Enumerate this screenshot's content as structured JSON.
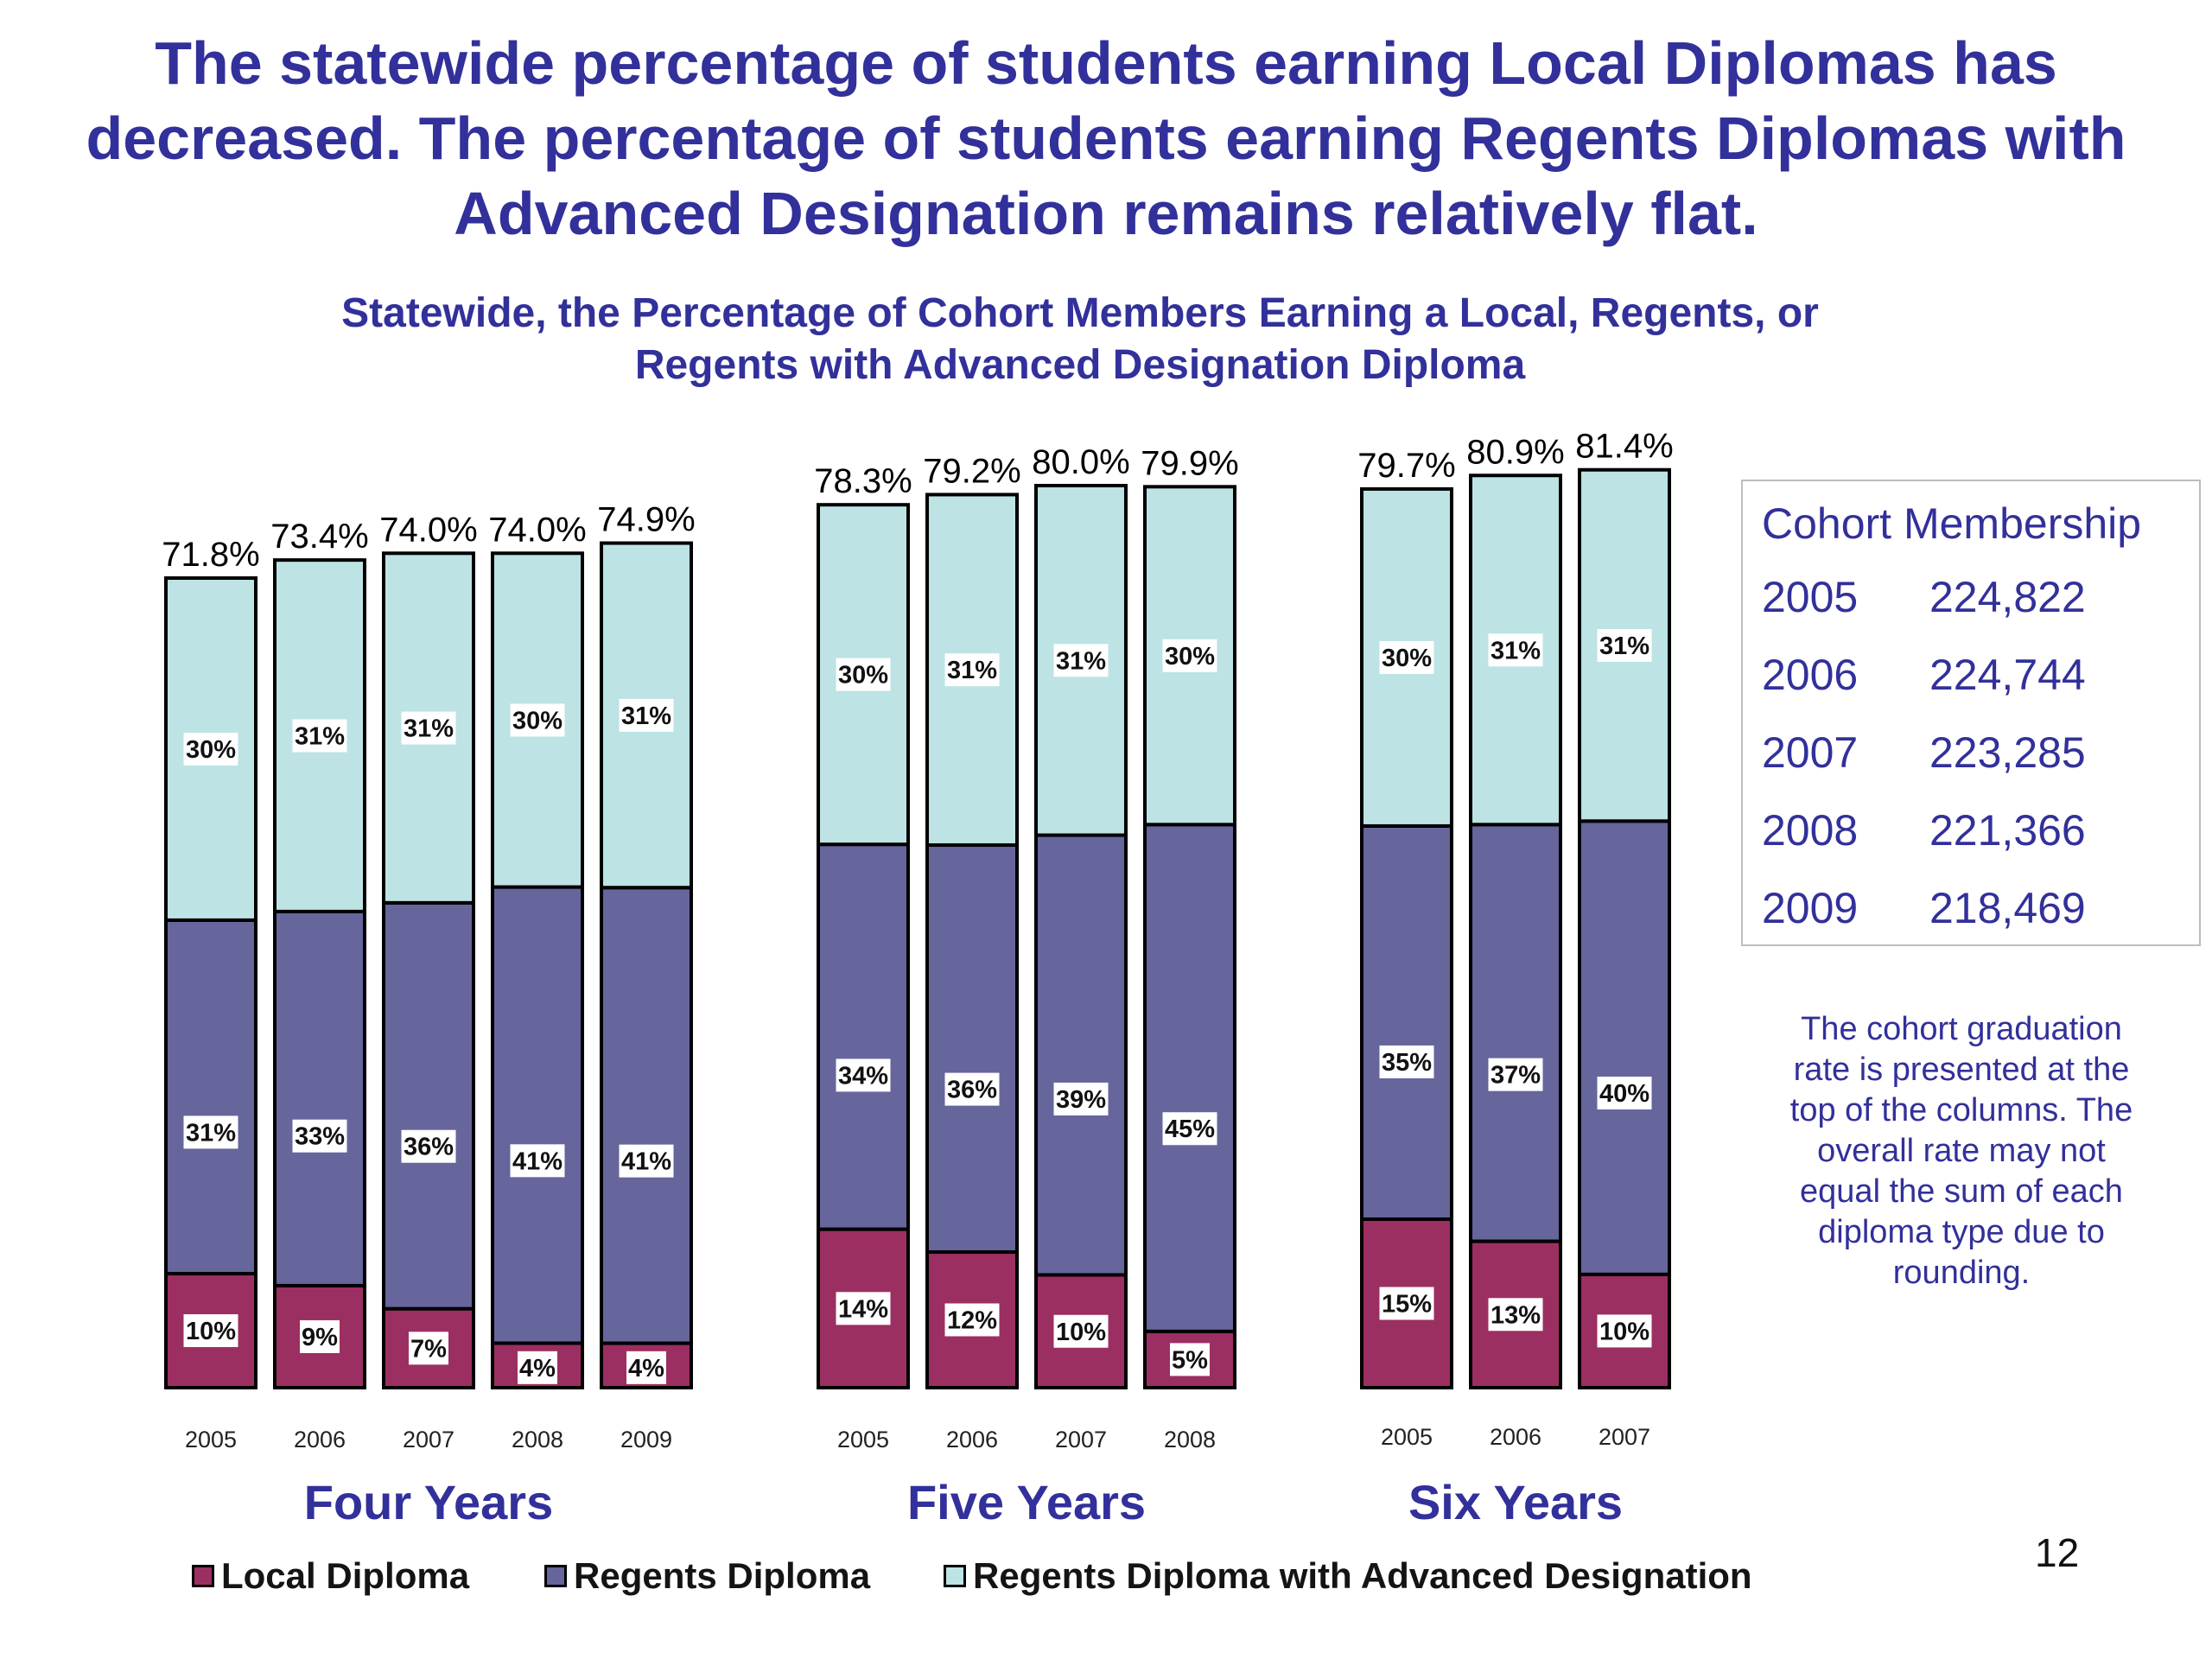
{
  "headline": "The statewide percentage of students earning Local Diplomas has decreased.  The percentage of students earning Regents Diplomas with Advanced Designation remains relatively flat.",
  "subtitle": "Statewide, the Percentage of Cohort Members Earning a Local, Regents, or Regents with Advanced Designation Diploma",
  "colors": {
    "local": "#9c2f61",
    "regents": "#66659c",
    "advanced": "#bde3e4",
    "accent": "#32309a"
  },
  "legend": {
    "local": "Local Diploma",
    "regents": "Regents Diploma",
    "advanced": "Regents Diploma with Advanced Designation"
  },
  "cohort": {
    "title": "Cohort Membership",
    "rows": [
      {
        "year": "2005",
        "value": "224,822"
      },
      {
        "year": "2006",
        "value": "224,744"
      },
      {
        "year": "2007",
        "value": "223,285"
      },
      {
        "year": "2008",
        "value": "221,366"
      },
      {
        "year": "2009",
        "value": "218,469"
      }
    ]
  },
  "note": "The cohort graduation rate is presented at the top of the columns.  The overall rate may not equal the sum of each diploma type due to rounding.",
  "page_number": "12",
  "chart_data": {
    "type": "bar",
    "stacked": true,
    "unit": "%",
    "ylim": [
      0,
      100
    ],
    "series_names": [
      "Local Diploma",
      "Regents Diploma",
      "Regents Diploma with Advanced Designation"
    ],
    "groups": [
      {
        "title": "Four Years",
        "categories": [
          "2005",
          "2006",
          "2007",
          "2008",
          "2009"
        ],
        "local": [
          10,
          9,
          7,
          4,
          4
        ],
        "regents": [
          31,
          33,
          36,
          41,
          41
        ],
        "advanced": [
          30,
          31,
          31,
          30,
          31
        ],
        "totals": [
          "71.8%",
          "73.4%",
          "74.0%",
          "74.0%",
          "74.9%"
        ]
      },
      {
        "title": "Five Years",
        "categories": [
          "2005",
          "2006",
          "2007",
          "2008"
        ],
        "local": [
          14,
          12,
          10,
          5
        ],
        "regents": [
          34,
          36,
          39,
          45
        ],
        "advanced": [
          30,
          31,
          31,
          30
        ],
        "totals": [
          "78.3%",
          "79.2%",
          "80.0%",
          "79.9%"
        ]
      },
      {
        "title": "Six Years",
        "categories": [
          "2005",
          "2006",
          "2007"
        ],
        "local": [
          15,
          13,
          10
        ],
        "regents": [
          35,
          37,
          40
        ],
        "advanced": [
          30,
          31,
          31
        ],
        "totals": [
          "79.7%",
          "80.9%",
          "81.4%"
        ]
      }
    ]
  }
}
